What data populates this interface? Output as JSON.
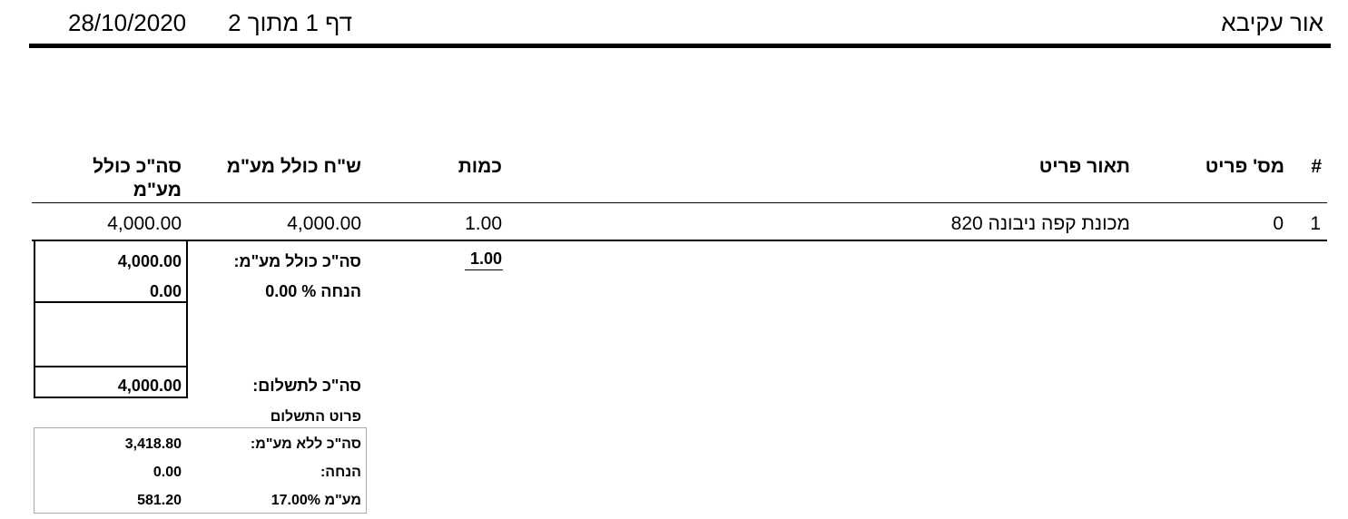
{
  "header": {
    "company": "אור עקיבא",
    "page_info": "דף 1 מתוך 2",
    "date": "28/10/2020"
  },
  "table": {
    "columns": [
      "#",
      "מס' פריט",
      "תאור פריט",
      "כמות",
      "ש\"ח כולל מע\"מ",
      "סה\"כ כולל",
      "מע\"מ"
    ],
    "rows": [
      {
        "num": "1",
        "item_no": "0",
        "description": "מכונת קפה ניבונה 820",
        "quantity": "1.00",
        "unit_price": "4,000.00",
        "total": "4,000.00"
      }
    ]
  },
  "totals": {
    "quantity_total": "1.00",
    "total_incl_vat_label": "סה\"כ כולל מע\"מ:",
    "total_incl_vat": "4,000.00",
    "discount_label": "הנחה % 0.00",
    "discount": "0.00",
    "to_pay_label": "סה\"כ לתשלום:",
    "to_pay": "4,000.00"
  },
  "payment_breakdown": {
    "title": "פרוט התשלום",
    "rows": [
      {
        "label": "סה\"כ ללא מע\"מ:",
        "value": "3,418.80"
      },
      {
        "label": "הנחה:",
        "value": "0.00"
      },
      {
        "label": "מע\"מ 17.00%",
        "value": "581.20"
      }
    ]
  }
}
